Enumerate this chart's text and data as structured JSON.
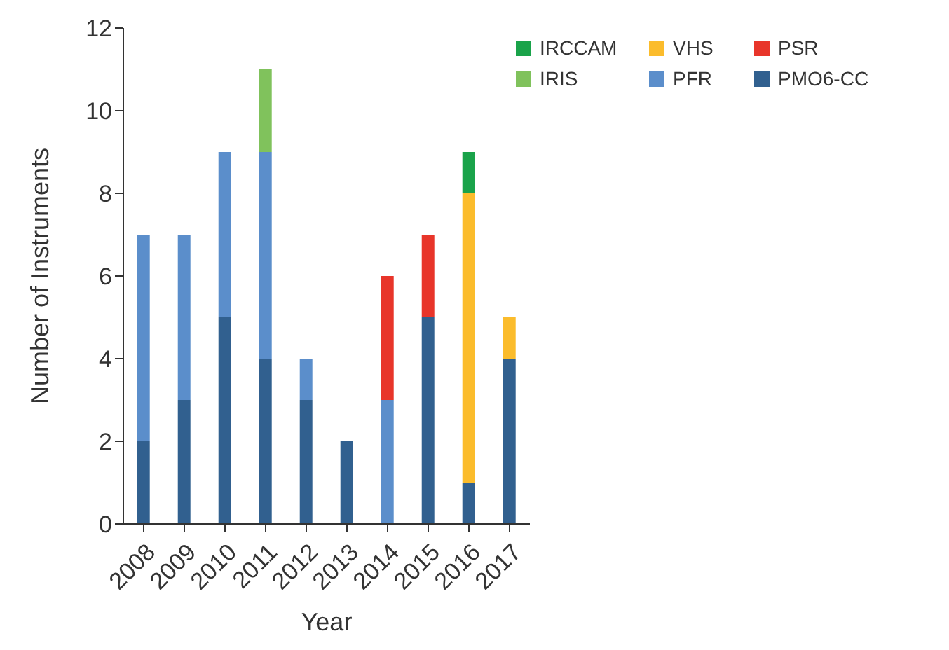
{
  "chart_data": {
    "type": "bar",
    "stacked": true,
    "xlabel": "Year",
    "ylabel": "Number of Instruments",
    "categories": [
      "2008",
      "2009",
      "2010",
      "2011",
      "2012",
      "2013",
      "2014",
      "2015",
      "2016",
      "2017"
    ],
    "series": [
      {
        "name": "PMO6-CC",
        "color": "#31608f",
        "values": [
          2,
          3,
          5,
          4,
          3,
          2,
          null,
          5,
          1,
          4
        ]
      },
      {
        "name": "PFR",
        "color": "#5b8ecb",
        "values": [
          5,
          4,
          4,
          5,
          1,
          null,
          3,
          null,
          null,
          null
        ]
      },
      {
        "name": "IRIS",
        "color": "#80c25c",
        "values": [
          null,
          null,
          null,
          2,
          null,
          null,
          null,
          null,
          null,
          null
        ]
      },
      {
        "name": "PSR",
        "color": "#e8352a",
        "values": [
          null,
          null,
          null,
          null,
          null,
          null,
          3,
          2,
          null,
          null
        ]
      },
      {
        "name": "VHS",
        "color": "#fbbc2c",
        "values": [
          null,
          null,
          null,
          null,
          null,
          null,
          null,
          null,
          7,
          1
        ]
      },
      {
        "name": "IRCCAM",
        "color": "#1aa34a",
        "values": [
          null,
          null,
          null,
          null,
          null,
          null,
          null,
          null,
          1,
          null
        ]
      }
    ],
    "ylim": [
      0,
      12
    ],
    "yticks": [
      0,
      2,
      4,
      6,
      8,
      10,
      12
    ],
    "grid": false,
    "legend": "top right"
  }
}
